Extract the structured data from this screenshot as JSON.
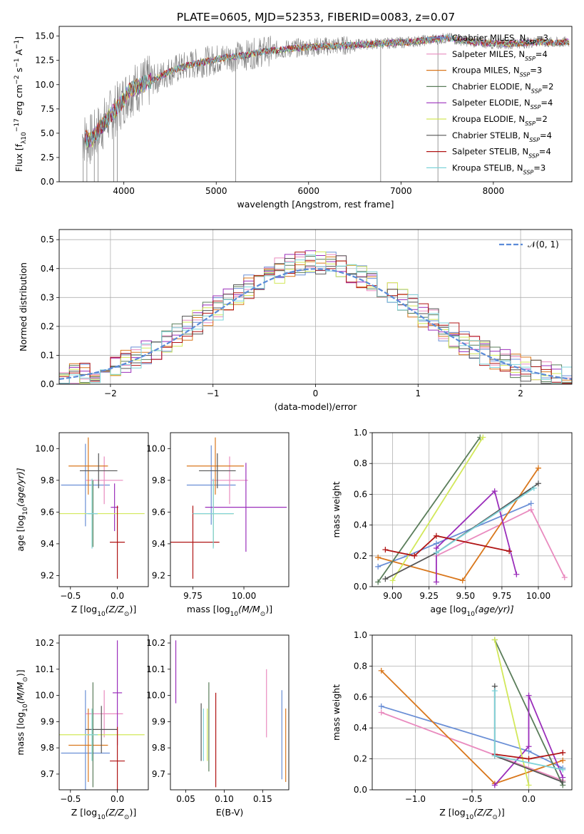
{
  "figure_title": "PLATE=0605, MJD=52353, FIBERID=0083, z=0.07",
  "colors": {
    "chabrier_miles": "#6a8fd6",
    "salpeter_miles": "#e98bbf",
    "kroupa_miles": "#d9771c",
    "chabrier_elodie": "#5a7d5a",
    "salpeter_elodie": "#9b2fbb",
    "kroupa_elodie": "#d2e85a",
    "chabrier_stelib": "#555555",
    "salpeter_stelib": "#b01414",
    "kroupa_stelib": "#7ed3d9",
    "observed": "#808080",
    "normal": "#5b8bd8",
    "grid": "#b0b0b0"
  },
  "chart_data": [
    {
      "type": "line",
      "id": "spectrum",
      "xlabel": "wavelength [Angstrom, rest frame]",
      "ylabel_parts": [
        "Flux [f",
        "λ",
        "10",
        "−17",
        " erg cm",
        "−2",
        " s",
        "−1",
        " A",
        "−1",
        "]"
      ],
      "xlim": [
        3300,
        8850
      ],
      "ylim": [
        0,
        16
      ],
      "xticks": [
        4000,
        5000,
        6000,
        7000,
        8000
      ],
      "xtick_labels": [
        "4000",
        "5000",
        "6000",
        "7000",
        "8000"
      ],
      "yticks": [
        0,
        2.5,
        5,
        7.5,
        10,
        12.5,
        15
      ],
      "ytick_labels": [
        "0.0",
        "2.5",
        "5.0",
        "7.5",
        "10.0",
        "12.5",
        "15.0"
      ],
      "grid": false,
      "legend_position": "right",
      "continuum": [
        [
          3550,
          4.6
        ],
        [
          3650,
          4.3
        ],
        [
          3750,
          5.6
        ],
        [
          3850,
          6.8
        ],
        [
          3950,
          7.8
        ],
        [
          4050,
          9.3
        ],
        [
          4200,
          10.0
        ],
        [
          4350,
          10.6
        ],
        [
          4500,
          11.4
        ],
        [
          4700,
          12.0
        ],
        [
          4900,
          12.4
        ],
        [
          5100,
          12.8
        ],
        [
          5300,
          13.0
        ],
        [
          5500,
          13.4
        ],
        [
          5700,
          13.6
        ],
        [
          5900,
          13.8
        ],
        [
          6100,
          13.9
        ],
        [
          6300,
          14.0
        ],
        [
          6500,
          14.1
        ],
        [
          6700,
          14.2
        ],
        [
          6900,
          14.3
        ],
        [
          7100,
          14.4
        ],
        [
          7300,
          14.6
        ],
        [
          7500,
          14.8
        ],
        [
          7700,
          14.5
        ],
        [
          7900,
          14.3
        ],
        [
          8100,
          14.2
        ],
        [
          8300,
          14.3
        ],
        [
          8500,
          14.4
        ],
        [
          8700,
          14.3
        ],
        [
          8800,
          14.4
        ]
      ],
      "spikes": [
        [
          3560,
          0
        ],
        [
          3600,
          0
        ],
        [
          3680,
          0
        ],
        [
          3720,
          0
        ],
        [
          3890,
          0
        ],
        [
          3930,
          0
        ],
        [
          5210,
          0
        ],
        [
          6780,
          0
        ],
        [
          7400,
          0
        ]
      ],
      "series": [
        {
          "name": "Chabrier MILES",
          "nssp": "3",
          "color_key": "chabrier_miles"
        },
        {
          "name": "Salpeter MILES",
          "nssp": "4",
          "color_key": "salpeter_miles"
        },
        {
          "name": "Kroupa MILES",
          "nssp": "3",
          "color_key": "kroupa_miles"
        },
        {
          "name": "Chabrier ELODIE",
          "nssp": "2",
          "color_key": "chabrier_elodie"
        },
        {
          "name": "Salpeter ELODIE",
          "nssp": "4",
          "color_key": "salpeter_elodie"
        },
        {
          "name": "Kroupa ELODIE",
          "nssp": "2",
          "color_key": "kroupa_elodie"
        },
        {
          "name": "Chabrier STELIB",
          "nssp": "4",
          "color_key": "chabrier_stelib"
        },
        {
          "name": "Salpeter STELIB",
          "nssp": "4",
          "color_key": "salpeter_stelib"
        },
        {
          "name": "Kroupa STELIB",
          "nssp": "3",
          "color_key": "kroupa_stelib"
        }
      ],
      "legend_sub": "SSP"
    },
    {
      "type": "histogram",
      "id": "residuals",
      "xlabel": "(data-model)/error",
      "ylabel": "Normed distribution",
      "xlim": [
        -2.5,
        2.5
      ],
      "ylim": [
        0,
        0.535
      ],
      "xticks": [
        -2,
        -1,
        0,
        1,
        2
      ],
      "xtick_labels": [
        "−2",
        "−1",
        "0",
        "1",
        "2"
      ],
      "yticks": [
        0,
        0.1,
        0.2,
        0.3,
        0.4,
        0.5
      ],
      "ytick_labels": [
        "0.0",
        "0.1",
        "0.2",
        "0.3",
        "0.4",
        "0.5"
      ],
      "grid": true,
      "bin_width": 0.1,
      "bin_start": -2.5,
      "normal_label": "𝒩(0, 1)",
      "normal_pdf": {
        "mean": 0,
        "sigma": 1
      }
    },
    {
      "type": "errorbar",
      "id": "age_vs_Z",
      "xlabel_parts": [
        "Z [log",
        "10",
        "(Z/Z",
        "⊙",
        ")]"
      ],
      "ylabel_parts": [
        "age  [log",
        "10",
        "(age/yr)]"
      ],
      "xlim": [
        -0.62,
        0.33
      ],
      "ylim": [
        9.13,
        10.1
      ],
      "xticks": [
        -0.5,
        0.0
      ],
      "xtick_labels": [
        "−0.5",
        "0.0"
      ],
      "yticks": [
        9.2,
        9.4,
        9.6,
        9.8,
        10.0
      ],
      "ytick_labels": [
        "9.2",
        "9.4",
        "9.6",
        "9.8",
        "10.0"
      ],
      "points": [
        {
          "color_key": "chabrier_miles",
          "x": -0.34,
          "xerr": 0.26,
          "y": 9.77,
          "yerr": 0.26
        },
        {
          "color_key": "salpeter_miles",
          "x": -0.14,
          "xerr": 0.2,
          "y": 9.8,
          "yerr": 0.15
        },
        {
          "color_key": "kroupa_miles",
          "x": -0.31,
          "xerr": 0.21,
          "y": 9.89,
          "yerr": 0.18
        },
        {
          "color_key": "chabrier_elodie",
          "x": -0.26,
          "xerr": 0.05,
          "y": 9.59,
          "yerr": 0.21
        },
        {
          "color_key": "salpeter_elodie",
          "x": -0.03,
          "xerr": 0.04,
          "y": 9.63,
          "yerr": 0.15
        },
        {
          "color_key": "kroupa_elodie",
          "x": -0.27,
          "xerr": 0.56,
          "y": 9.59,
          "yerr": 0.21
        },
        {
          "color_key": "chabrier_stelib",
          "x": -0.2,
          "xerr": 0.2,
          "y": 9.86,
          "yerr": 0.11
        },
        {
          "color_key": "salpeter_stelib",
          "x": 0.0,
          "xerr": 0.08,
          "y": 9.41,
          "yerr": 0.23
        },
        {
          "color_key": "kroupa_stelib",
          "x": -0.27,
          "xerr": 0.06,
          "y": 9.59,
          "yerr": 0.22
        }
      ]
    },
    {
      "type": "errorbar",
      "id": "age_vs_mass",
      "xlabel_parts": [
        "mass [log",
        "10",
        "(M/M",
        "⊙",
        ")]"
      ],
      "ylabel_parts": [],
      "xlim": [
        9.64,
        10.22
      ],
      "ylim": [
        9.13,
        10.1
      ],
      "xticks": [
        9.75,
        10.0
      ],
      "xtick_labels": [
        "9.75",
        "10.00"
      ],
      "yticks": [
        9.2,
        9.4,
        9.6,
        9.8,
        10.0
      ],
      "ytick_labels": [
        "9.2",
        "9.4",
        "9.6",
        "9.8",
        "10.0"
      ],
      "points": [
        {
          "color_key": "chabrier_miles",
          "x": 9.84,
          "xerr": 0.12,
          "y": 9.77,
          "yerr": 0.25
        },
        {
          "color_key": "salpeter_miles",
          "x": 9.93,
          "xerr": 0.09,
          "y": 9.8,
          "yerr": 0.15
        },
        {
          "color_key": "kroupa_miles",
          "x": 9.86,
          "xerr": 0.14,
          "y": 9.89,
          "yerr": 0.18
        },
        {
          "color_key": "chabrier_elodie",
          "x": 9.85,
          "xerr": 0.1,
          "y": 9.59,
          "yerr": 0.21
        },
        {
          "color_key": "salpeter_elodie",
          "x": 10.01,
          "xerr": 0.2,
          "y": 9.63,
          "yerr": 0.28
        },
        {
          "color_key": "kroupa_elodie",
          "x": 9.85,
          "xerr": 0.1,
          "y": 9.59,
          "yerr": 0.21
        },
        {
          "color_key": "chabrier_stelib",
          "x": 9.87,
          "xerr": 0.09,
          "y": 9.86,
          "yerr": 0.11
        },
        {
          "color_key": "salpeter_stelib",
          "x": 9.75,
          "xerr": 0.13,
          "y": 9.41,
          "yerr": 0.23
        },
        {
          "color_key": "kroupa_stelib",
          "x": 9.85,
          "xerr": 0.1,
          "y": 9.59,
          "yerr": 0.22
        }
      ]
    },
    {
      "type": "line",
      "id": "weight_vs_age",
      "xlabel_parts": [
        "age  [log",
        "10",
        "(age/yr)]"
      ],
      "ylabel": "mass weight",
      "xlim": [
        8.86,
        10.23
      ],
      "ylim": [
        0,
        1
      ],
      "xticks": [
        9.0,
        9.25,
        9.5,
        9.75,
        10.0
      ],
      "xtick_labels": [
        "9.00",
        "9.25",
        "9.50",
        "9.75",
        "10.00"
      ],
      "yticks": [
        0,
        0.2,
        0.4,
        0.6,
        0.8,
        1.0
      ],
      "ytick_labels": [
        "0.0",
        "0.2",
        "0.4",
        "0.6",
        "0.8",
        "1.0"
      ],
      "grid": true,
      "series": [
        {
          "color_key": "chabrier_miles",
          "x": [
            8.9,
            9.1,
            9.3,
            9.95
          ],
          "y": [
            0.13,
            0.2,
            0.28,
            0.54
          ]
        },
        {
          "color_key": "salpeter_miles",
          "x": [
            9.3,
            9.95,
            10.18
          ],
          "y": [
            0.2,
            0.5,
            0.06
          ]
        },
        {
          "color_key": "kroupa_miles",
          "x": [
            8.9,
            9.48,
            10.0
          ],
          "y": [
            0.19,
            0.04,
            0.77
          ]
        },
        {
          "color_key": "chabrier_elodie",
          "x": [
            8.9,
            9.6
          ],
          "y": [
            0.03,
            0.97
          ]
        },
        {
          "color_key": "salpeter_elodie",
          "x": [
            9.3,
            9.3,
            9.7,
            9.85
          ],
          "y": [
            0.03,
            0.25,
            0.62,
            0.08
          ]
        },
        {
          "color_key": "kroupa_elodie",
          "x": [
            9.0,
            9.62
          ],
          "y": [
            0.04,
            0.97
          ]
        },
        {
          "color_key": "chabrier_stelib",
          "x": [
            8.95,
            9.3,
            10.0
          ],
          "y": [
            0.05,
            0.22,
            0.67
          ]
        },
        {
          "color_key": "salpeter_stelib",
          "x": [
            8.95,
            9.15,
            9.3,
            9.8
          ],
          "y": [
            0.24,
            0.2,
            0.33,
            0.23
          ]
        },
        {
          "color_key": "kroupa_stelib",
          "x": [
            9.3,
            9.97
          ],
          "y": [
            0.22,
            0.64
          ]
        }
      ]
    },
    {
      "type": "errorbar",
      "id": "mass_vs_Z",
      "xlabel_parts": [
        "Z [log",
        "10",
        "(Z/Z",
        "⊙",
        ")]"
      ],
      "ylabel_parts": [
        "mass [log",
        "10",
        "(M/M",
        "⊙",
        ")]"
      ],
      "xlim": [
        -0.62,
        0.33
      ],
      "ylim": [
        9.64,
        10.23
      ],
      "xticks": [
        -0.5,
        0.0
      ],
      "xtick_labels": [
        "−0.5",
        "0.0"
      ],
      "yticks": [
        9.7,
        9.8,
        9.9,
        10.0,
        10.1,
        10.2
      ],
      "ytick_labels": [
        "9.7",
        "9.8",
        "9.9",
        "10.0",
        "10.1",
        "10.2"
      ],
      "points": [
        {
          "color_key": "chabrier_miles",
          "x": -0.34,
          "xerr": 0.26,
          "y": 9.78,
          "yerr": 0.24
        },
        {
          "color_key": "salpeter_miles",
          "x": -0.14,
          "xerr": 0.2,
          "y": 9.93,
          "yerr": 0.09
        },
        {
          "color_key": "kroupa_miles",
          "x": -0.31,
          "xerr": 0.21,
          "y": 9.81,
          "yerr": 0.14
        },
        {
          "color_key": "chabrier_elodie",
          "x": -0.26,
          "xerr": 0.05,
          "y": 9.85,
          "yerr": 0.2
        },
        {
          "color_key": "salpeter_elodie",
          "x": 0.0,
          "xerr": 0.05,
          "y": 10.01,
          "yerr": 0.2
        },
        {
          "color_key": "kroupa_elodie",
          "x": -0.27,
          "xerr": 0.56,
          "y": 9.85,
          "yerr": 0.1
        },
        {
          "color_key": "chabrier_stelib",
          "x": -0.17,
          "xerr": 0.17,
          "y": 9.87,
          "yerr": 0.09
        },
        {
          "color_key": "salpeter_stelib",
          "x": 0.0,
          "xerr": 0.08,
          "y": 9.75,
          "yerr": 0.13
        },
        {
          "color_key": "kroupa_stelib",
          "x": -0.27,
          "xerr": 0.06,
          "y": 9.85,
          "yerr": 0.1
        }
      ]
    },
    {
      "type": "errorbar",
      "id": "mass_vs_ebv",
      "xlabel": "E(B-V)",
      "ylabel_parts": [],
      "xlim": [
        0.03,
        0.184
      ],
      "ylim": [
        9.64,
        10.23
      ],
      "xticks": [
        0.05,
        0.1,
        0.15
      ],
      "xtick_labels": [
        "0.05",
        "0.10",
        "0.15"
      ],
      "yticks": [
        9.7,
        9.8,
        9.9,
        10.0,
        10.1,
        10.2
      ],
      "ytick_labels": [
        "9.7",
        "9.8",
        "9.9",
        "10.0",
        "10.1",
        "10.2"
      ],
      "points": [
        {
          "color_key": "chabrier_miles",
          "x": 0.175,
          "xerr": 0,
          "y": 9.85,
          "yerr": 0.17
        },
        {
          "color_key": "salpeter_miles",
          "x": 0.155,
          "xerr": 0,
          "y": 9.97,
          "yerr": 0.13
        },
        {
          "color_key": "kroupa_miles",
          "x": 0.18,
          "xerr": 0,
          "y": 9.81,
          "yerr": 0.14
        },
        {
          "color_key": "chabrier_elodie",
          "x": 0.08,
          "xerr": 0,
          "y": 9.88,
          "yerr": 0.17
        },
        {
          "color_key": "salpeter_elodie",
          "x": 0.037,
          "xerr": 0,
          "y": 10.09,
          "yerr": 0.12
        },
        {
          "color_key": "kroupa_elodie",
          "x": 0.078,
          "xerr": 0,
          "y": 9.85,
          "yerr": 0.1
        },
        {
          "color_key": "chabrier_stelib",
          "x": 0.07,
          "xerr": 0,
          "y": 9.86,
          "yerr": 0.11
        },
        {
          "color_key": "salpeter_stelib",
          "x": 0.089,
          "xerr": 0,
          "y": 9.83,
          "yerr": 0.18
        },
        {
          "color_key": "kroupa_stelib",
          "x": 0.073,
          "xerr": 0,
          "y": 9.85,
          "yerr": 0.1
        }
      ]
    },
    {
      "type": "line",
      "id": "weight_vs_Z",
      "xlabel_parts": [
        "Z [log",
        "10",
        "(Z/Z",
        "⊙",
        ")]"
      ],
      "ylabel": "mass weight",
      "xlim": [
        -1.38,
        0.38
      ],
      "ylim": [
        0,
        1
      ],
      "xticks": [
        -1.0,
        -0.5,
        0.0
      ],
      "xtick_labels": [
        "−1.0",
        "−0.5",
        "0.0"
      ],
      "yticks": [
        0,
        0.2,
        0.4,
        0.6,
        0.8,
        1.0
      ],
      "ytick_labels": [
        "0.0",
        "0.2",
        "0.4",
        "0.6",
        "0.8",
        "1.0"
      ],
      "grid": true,
      "series": [
        {
          "color_key": "chabrier_miles",
          "x": [
            -1.3,
            0.0,
            0.3
          ],
          "y": [
            0.54,
            0.25,
            0.14
          ]
        },
        {
          "color_key": "salpeter_miles",
          "x": [
            -1.3,
            0.3
          ],
          "y": [
            0.5,
            0.06
          ]
        },
        {
          "color_key": "kroupa_miles",
          "x": [
            -1.3,
            -0.3,
            0.3
          ],
          "y": [
            0.77,
            0.04,
            0.19
          ]
        },
        {
          "color_key": "chabrier_elodie",
          "x": [
            -0.3,
            0.3
          ],
          "y": [
            0.97,
            0.03
          ]
        },
        {
          "color_key": "salpeter_elodie",
          "x": [
            -0.3,
            0.0,
            0.0,
            0.3
          ],
          "y": [
            0.03,
            0.28,
            0.61,
            0.08
          ]
        },
        {
          "color_key": "kroupa_elodie",
          "x": [
            -0.3,
            0.0
          ],
          "y": [
            0.97,
            0.03
          ]
        },
        {
          "color_key": "chabrier_stelib",
          "x": [
            -0.3,
            -0.3,
            0.3
          ],
          "y": [
            0.67,
            0.22,
            0.05
          ]
        },
        {
          "color_key": "salpeter_stelib",
          "x": [
            -0.3,
            0.0,
            0.3
          ],
          "y": [
            0.23,
            0.2,
            0.24
          ]
        },
        {
          "color_key": "kroupa_stelib",
          "x": [
            -0.3,
            -0.3,
            0.3
          ],
          "y": [
            0.64,
            0.22,
            0.13
          ]
        }
      ]
    }
  ]
}
